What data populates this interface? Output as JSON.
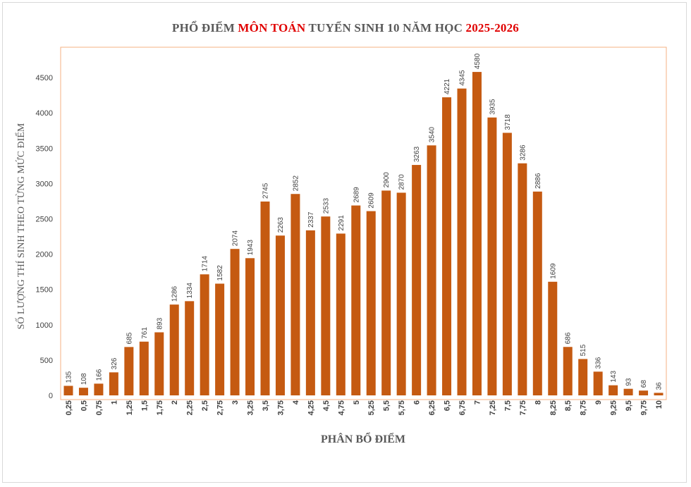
{
  "title": {
    "part1": "PHỔ ĐIỂM ",
    "part2": "MÔN TOÁN",
    "part3": " TUYỂN SINH 10 NĂM HỌC ",
    "part4": "2025-2026"
  },
  "colors": {
    "bar": "#c55a11",
    "title_red": "#e00000",
    "plot_border": "#f4b183"
  },
  "chart_data": {
    "type": "bar",
    "title": "PHỔ ĐIỂM MÔN TOÁN TUYỂN SINH 10 NĂM HỌC 2025-2026",
    "xlabel": "PHÂN BỔ ĐIỂM",
    "ylabel": "SỐ LƯỢNG THÍ SINH THEO TỪNG MỨC ĐIỂM",
    "ylim": [
      0,
      5000
    ],
    "yticks": [
      0,
      500,
      1000,
      1500,
      2000,
      2500,
      3000,
      3500,
      4000,
      4500
    ],
    "grid": false,
    "categories": [
      "0,25",
      "0,5",
      "0,75",
      "1",
      "1,25",
      "1,5",
      "1,75",
      "2",
      "2,25",
      "2,5",
      "2,75",
      "3",
      "3,25",
      "3,5",
      "3,75",
      "4",
      "4,25",
      "4,5",
      "4,75",
      "5",
      "5,25",
      "5,5",
      "5,75",
      "6",
      "6,25",
      "6,5",
      "6,75",
      "7",
      "7,25",
      "7,5",
      "7,75",
      "8",
      "8,25",
      "8,5",
      "8,75",
      "9",
      "9,25",
      "9,5",
      "9,75",
      "10"
    ],
    "values": [
      135,
      108,
      166,
      326,
      685,
      761,
      893,
      1286,
      1334,
      1714,
      1582,
      2074,
      1943,
      2745,
      2263,
      2852,
      2337,
      2533,
      2291,
      2689,
      2609,
      2900,
      2870,
      3263,
      3540,
      4221,
      4345,
      4580,
      3935,
      3718,
      3286,
      2886,
      1609,
      686,
      515,
      336,
      143,
      93,
      68,
      36
    ]
  }
}
